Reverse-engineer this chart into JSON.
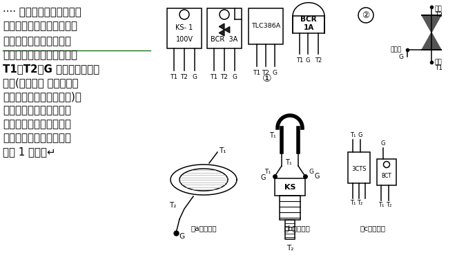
{
  "bg_color": "#ffffff",
  "fig_width": 6.62,
  "fig_height": 3.92,
  "dpi": 100,
  "left_lines": [
    "···· 双向可控硅的规格、型",
    "号、外形以及电极引脚排列",
    "依生产厂家不同而有所不",
    "同，但其电极引脚多数是按",
    "T1、T2、G 的顺序从左至右",
    "排列(观察时， 电极引脚向",
    "下，面对标有字符的一面)。",
    "目前市场上最常见的几种",
    "塑封外形结构双向可控硅",
    "的外形及电极引脚排列如",
    "下图 1 所示。↵"
  ],
  "underline_line_idx": 2,
  "bold_line_idx": 4
}
